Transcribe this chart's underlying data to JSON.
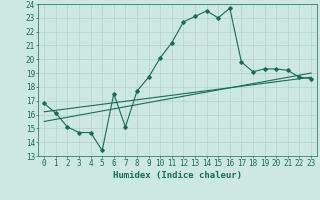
{
  "title": "",
  "xlabel": "Humidex (Indice chaleur)",
  "ylabel": "",
  "ylim": [
    13,
    24
  ],
  "xlim": [
    -0.5,
    23.5
  ],
  "yticks": [
    13,
    14,
    15,
    16,
    17,
    18,
    19,
    20,
    21,
    22,
    23,
    24
  ],
  "xticks": [
    0,
    1,
    2,
    3,
    4,
    5,
    6,
    7,
    8,
    9,
    10,
    11,
    12,
    13,
    14,
    15,
    16,
    17,
    18,
    19,
    20,
    21,
    22,
    23
  ],
  "bg_color": "#cce8e0",
  "line_color": "#1a6b5a",
  "main_curve_x": [
    0,
    1,
    2,
    3,
    4,
    5,
    6,
    7,
    8,
    9,
    10,
    11,
    12,
    13,
    14,
    15,
    16,
    17,
    18,
    19,
    20,
    21,
    22,
    23
  ],
  "main_curve_y": [
    16.8,
    16.1,
    15.1,
    14.7,
    14.7,
    13.4,
    17.5,
    15.1,
    17.7,
    18.7,
    20.1,
    21.2,
    22.7,
    23.1,
    23.5,
    23.0,
    23.7,
    19.8,
    19.1,
    19.3,
    19.3,
    19.2,
    18.7,
    18.6
  ],
  "trend_line1_x": [
    0,
    23
  ],
  "trend_line1_y": [
    15.5,
    19.0
  ],
  "trend_line2_x": [
    0,
    23
  ],
  "trend_line2_y": [
    16.2,
    18.7
  ],
  "marker_style": "D",
  "marker_size": 1.8,
  "line_width": 0.8,
  "grid_color": "#b0d4cc",
  "font_color": "#1a6b5a",
  "font_size": 5.5,
  "xlabel_fontsize": 6.5
}
